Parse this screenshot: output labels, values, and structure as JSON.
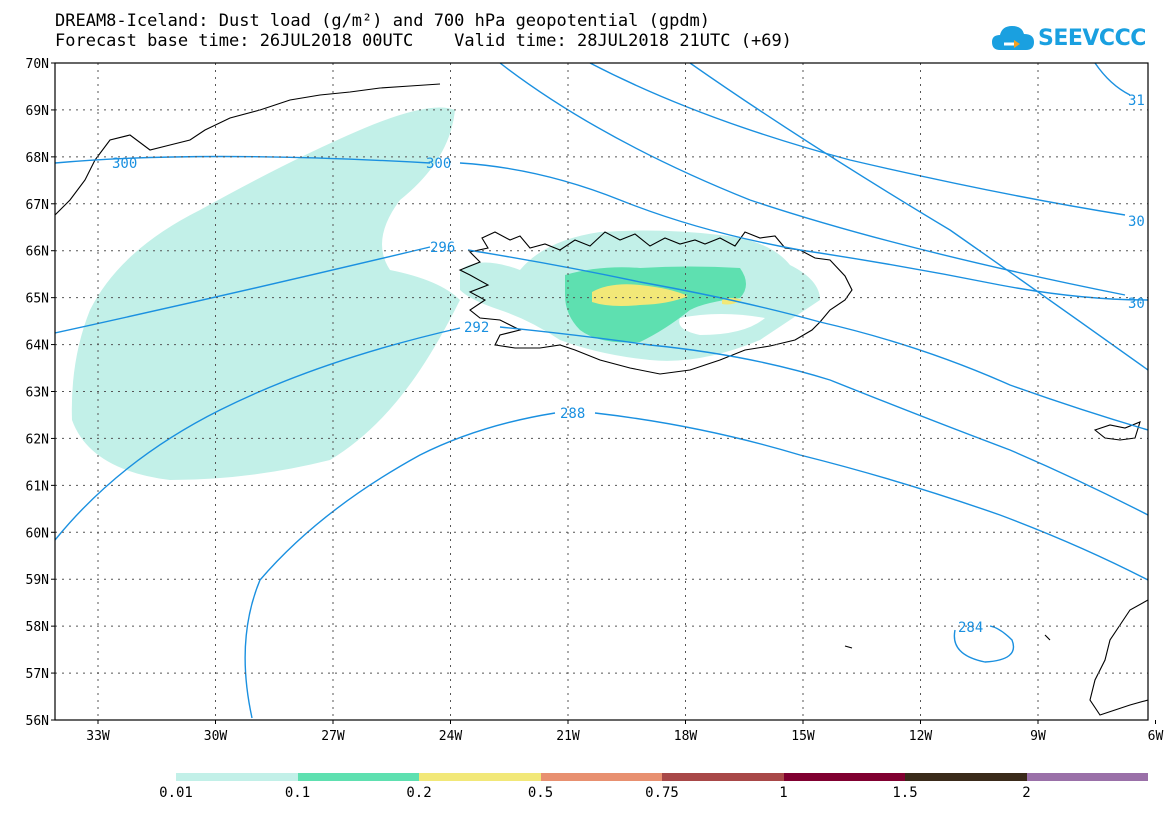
{
  "title_line1": "DREAM8-Iceland: Dust load (g/m²) and 700 hPa geopotential (gpdm)",
  "title_line2": "Forecast base time: 26JUL2018 00UTC    Valid time: 28JUL2018 21UTC (+69)",
  "logo_text": "SEEVCCC",
  "lat_labels": [
    "70N",
    "69N",
    "68N",
    "67N",
    "66N",
    "65N",
    "64N",
    "63N",
    "62N",
    "61N",
    "60N",
    "59N",
    "58N",
    "57N",
    "56N"
  ],
  "lon_labels": [
    "33W",
    "30W",
    "27W",
    "24W",
    "21W",
    "18W",
    "15W",
    "12W",
    "9W",
    "6W"
  ],
  "contour_labels": [
    "300",
    "300",
    "296",
    "292",
    "288",
    "284",
    "31",
    "30",
    "30"
  ],
  "colorbar": {
    "labels": [
      "0.01",
      "0.1",
      "0.2",
      "0.5",
      "0.75",
      "1",
      "1.5",
      "2"
    ],
    "colors": [
      "#c2f0e8",
      "#5ee0b0",
      "#f2e878",
      "#e89070",
      "#a84848",
      "#800030",
      "#3a2a1a",
      "#9a70a8"
    ]
  },
  "colors": {
    "contour": "#1a90e0",
    "dust_low": "#c2f0e8",
    "dust_mid": "#5ee0b0",
    "dust_high": "#f2e878"
  }
}
